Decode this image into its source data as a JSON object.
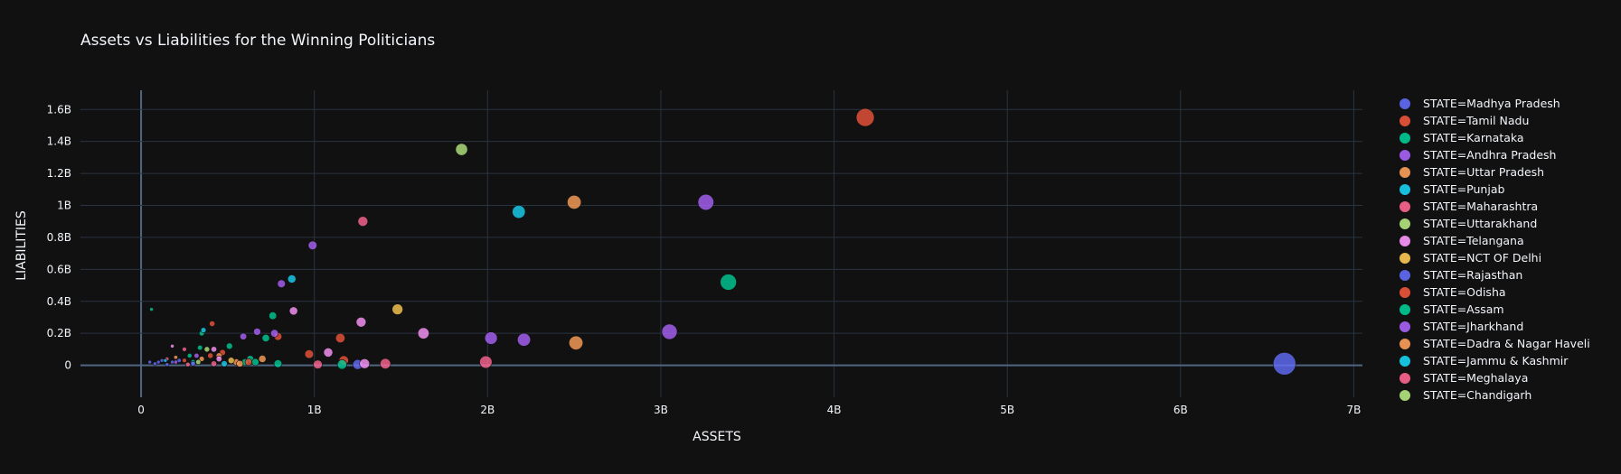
{
  "chart_data": {
    "type": "scatter",
    "title": "Assets vs Liabilities for the Winning Politicians",
    "xlabel": "ASSETS",
    "ylabel": "LIABILITIES",
    "xlim": [
      -350000000.0,
      7050000000.0
    ],
    "ylim": [
      -200000000.0,
      1720000000.0
    ],
    "x_ticks": [
      {
        "value": 0,
        "label": "0"
      },
      {
        "value": 1000000000.0,
        "label": "1B"
      },
      {
        "value": 2000000000.0,
        "label": "2B"
      },
      {
        "value": 3000000000.0,
        "label": "3B"
      },
      {
        "value": 4000000000.0,
        "label": "4B"
      },
      {
        "value": 5000000000.0,
        "label": "5B"
      },
      {
        "value": 6000000000.0,
        "label": "6B"
      },
      {
        "value": 7000000000.0,
        "label": "7B"
      }
    ],
    "y_ticks": [
      {
        "value": 0,
        "label": "0"
      },
      {
        "value": 200000000.0,
        "label": "0.2B"
      },
      {
        "value": 400000000.0,
        "label": "0.4B"
      },
      {
        "value": 600000000.0,
        "label": "0.6B"
      },
      {
        "value": 800000000.0,
        "label": "0.8B"
      },
      {
        "value": 1000000000.0,
        "label": "1B"
      },
      {
        "value": 1200000000.0,
        "label": "1.2B"
      },
      {
        "value": 1400000000.0,
        "label": "1.4B"
      },
      {
        "value": 1600000000.0,
        "label": "1.6B"
      }
    ],
    "grid": true,
    "legend_position": "right",
    "bubble_size_encodes": "assets",
    "series": [
      {
        "name": "STATE=Madhya Pradesh",
        "color": "#636efa",
        "points": [
          [
            6600000000.0,
            10000000.0
          ],
          [
            1250000000.0,
            5000000.0
          ],
          [
            180000000.0,
            20000000.0
          ],
          [
            80000000.0,
            10000000.0
          ],
          [
            50000000.0,
            20000000.0
          ],
          [
            120000000.0,
            30000000.0
          ]
        ]
      },
      {
        "name": "STATE=Tamil Nadu",
        "color": "#ef553b",
        "points": [
          [
            4180000000.0,
            1550000000.0
          ],
          [
            1150000000.0,
            170000000.0
          ],
          [
            970000000.0,
            70000000.0
          ],
          [
            1170000000.0,
            30000000.0
          ],
          [
            790000000.0,
            180000000.0
          ],
          [
            410000000.0,
            260000000.0
          ],
          [
            470000000.0,
            80000000.0
          ],
          [
            250000000.0,
            30000000.0
          ]
        ]
      },
      {
        "name": "STATE=Karnataka",
        "color": "#00cc96",
        "points": [
          [
            3390000000.0,
            520000000.0
          ],
          [
            760000000.0,
            310000000.0
          ],
          [
            720000000.0,
            170000000.0
          ],
          [
            1160000000.0,
            5000000.0
          ],
          [
            790000000.0,
            10000000.0
          ],
          [
            630000000.0,
            40000000.0
          ],
          [
            510000000.0,
            120000000.0
          ],
          [
            350000000.0,
            200000000.0
          ],
          [
            600000000.0,
            20000000.0
          ],
          [
            300000000.0,
            20000000.0
          ],
          [
            60000000.0,
            350000000.0
          ]
        ]
      },
      {
        "name": "STATE=Andhra Pradesh",
        "color": "#ab63fa",
        "points": [
          [
            3260000000.0,
            1020000000.0
          ],
          [
            3050000000.0,
            210000000.0
          ],
          [
            2210000000.0,
            160000000.0
          ],
          [
            2020000000.0,
            170000000.0
          ],
          [
            990000000.0,
            750000000.0
          ],
          [
            810000000.0,
            510000000.0
          ],
          [
            590000000.0,
            180000000.0
          ],
          [
            670000000.0,
            210000000.0
          ],
          [
            770000000.0,
            200000000.0
          ]
        ]
      },
      {
        "name": "STATE=Uttar Pradesh",
        "color": "#ffa15a",
        "points": [
          [
            2500000000.0,
            1020000000.0
          ],
          [
            2510000000.0,
            140000000.0
          ],
          [
            700000000.0,
            40000000.0
          ],
          [
            450000000.0,
            60000000.0
          ],
          [
            550000000.0,
            20000000.0
          ],
          [
            350000000.0,
            40000000.0
          ],
          [
            200000000.0,
            50000000.0
          ]
        ]
      },
      {
        "name": "STATE=Punjab",
        "color": "#19d3f3",
        "points": [
          [
            2180000000.0,
            960000000.0
          ],
          [
            870000000.0,
            540000000.0
          ],
          [
            360000000.0,
            220000000.0
          ]
        ]
      },
      {
        "name": "STATE=Maharashtra",
        "color": "#ff6692",
        "points": [
          [
            1280000000.0,
            900000000.0
          ],
          [
            1990000000.0,
            20000000.0
          ],
          [
            1410000000.0,
            10000000.0
          ],
          [
            1020000000.0,
            5000000.0
          ],
          [
            420000000.0,
            10000000.0
          ],
          [
            250000000.0,
            100000000.0
          ],
          [
            150000000.0,
            40000000.0
          ]
        ]
      },
      {
        "name": "STATE=Uttarakhand",
        "color": "#b6e880",
        "points": [
          [
            1850000000.0,
            1350000000.0
          ],
          [
            380000000.0,
            100000000.0
          ]
        ]
      },
      {
        "name": "STATE=Telangana",
        "color": "#ff97ff",
        "points": [
          [
            1630000000.0,
            200000000.0
          ],
          [
            1270000000.0,
            270000000.0
          ],
          [
            880000000.0,
            340000000.0
          ],
          [
            1080000000.0,
            80000000.0
          ],
          [
            1290000000.0,
            10000000.0
          ],
          [
            420000000.0,
            100000000.0
          ],
          [
            180000000.0,
            120000000.0
          ],
          [
            450000000.0,
            40000000.0
          ]
        ]
      },
      {
        "name": "STATE=NCT OF Delhi",
        "color": "#fecb52",
        "points": [
          [
            1480000000.0,
            350000000.0
          ],
          [
            520000000.0,
            30000000.0
          ]
        ]
      },
      {
        "name": "STATE=Rajasthan",
        "color": "#636efa",
        "points": [
          [
            300000000.0,
            10000000.0
          ],
          [
            220000000.0,
            30000000.0
          ],
          [
            100000000.0,
            20000000.0
          ],
          [
            150000000.0,
            5000000.0
          ]
        ]
      },
      {
        "name": "STATE=Odisha",
        "color": "#ef553b",
        "points": [
          [
            620000000.0,
            20000000.0
          ],
          [
            400000000.0,
            60000000.0
          ]
        ]
      },
      {
        "name": "STATE=Assam",
        "color": "#00cc96",
        "points": [
          [
            340000000.0,
            110000000.0
          ],
          [
            660000000.0,
            20000000.0
          ],
          [
            280000000.0,
            60000000.0
          ]
        ]
      },
      {
        "name": "STATE=Jharkhand",
        "color": "#ab63fa",
        "points": [
          [
            320000000.0,
            60000000.0
          ],
          [
            200000000.0,
            20000000.0
          ]
        ]
      },
      {
        "name": "STATE=Dadra & Nagar Haveli",
        "color": "#ffa15a",
        "points": [
          [
            570000000.0,
            10000000.0
          ]
        ]
      },
      {
        "name": "STATE=Jammu & Kashmir",
        "color": "#19d3f3",
        "points": [
          [
            480000000.0,
            10000000.0
          ],
          [
            140000000.0,
            30000000.0
          ]
        ]
      },
      {
        "name": "STATE=Meghalaya",
        "color": "#ff6692",
        "points": [
          [
            270000000.0,
            5000000.0
          ]
        ]
      },
      {
        "name": "STATE=Chandigarh",
        "color": "#b6e880",
        "points": [
          [
            330000000.0,
            20000000.0
          ]
        ]
      }
    ]
  }
}
